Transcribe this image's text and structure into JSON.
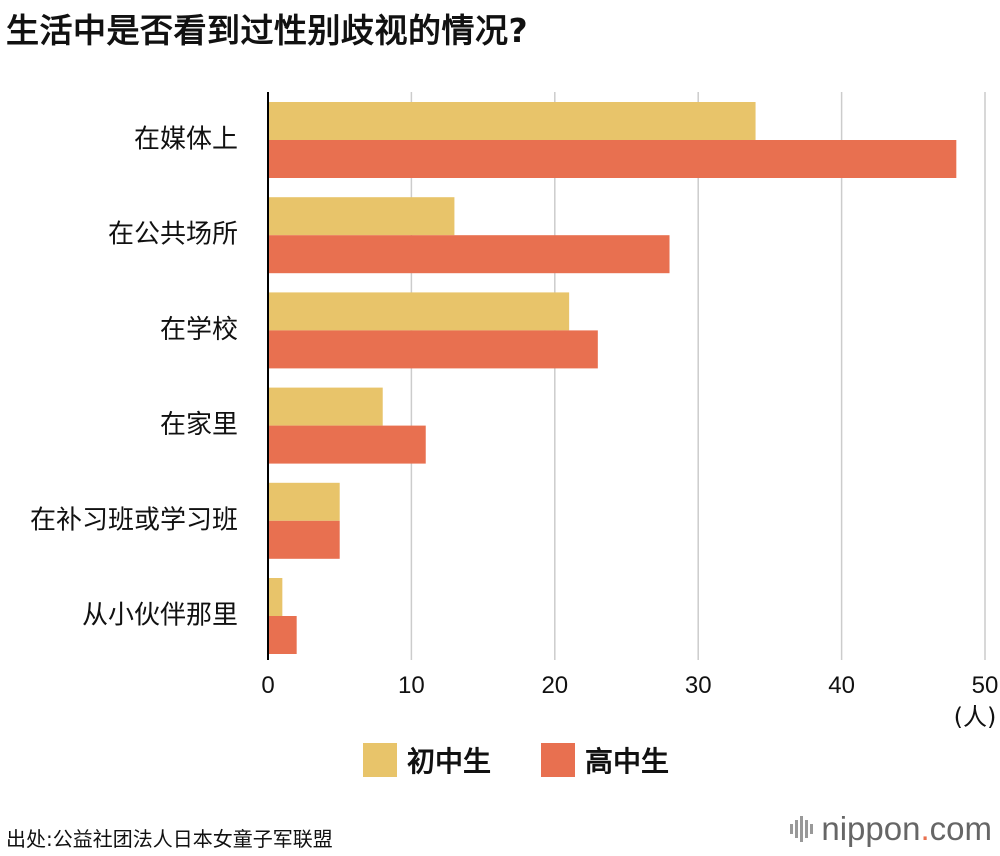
{
  "title": "生活中是否看到过性别歧视的情况?",
  "colors": {
    "junior": "#e8c46a",
    "senior": "#e87050",
    "grid": "#cccccc",
    "axis": "#000000"
  },
  "chart_data": {
    "type": "bar",
    "orientation": "horizontal",
    "categories": [
      "在媒体上",
      "在公共场所",
      "在学校",
      "在家里",
      "在补习班或学习班",
      "从小伙伴那里"
    ],
    "series": [
      {
        "name": "初中生",
        "values": [
          34,
          13,
          21,
          8,
          5,
          1
        ]
      },
      {
        "name": "高中生",
        "values": [
          48,
          28,
          23,
          11,
          5,
          2
        ]
      }
    ],
    "xlim": [
      0,
      50
    ],
    "xticks": [
      0,
      10,
      20,
      30,
      40,
      50
    ],
    "unit": "(人)",
    "grid": true
  },
  "source": "出处:公益社团法人日本女童子军联盟",
  "brand": {
    "name": "nippon",
    "dot": ".",
    "suffix": "com"
  }
}
